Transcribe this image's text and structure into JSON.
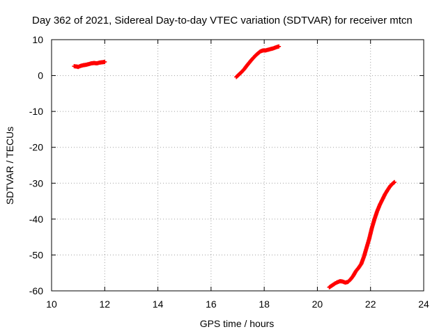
{
  "chart_data": {
    "type": "scatter",
    "title": "Day 362 of 2021, Sidereal Day-to-day VTEC variation (SDTVAR) for receiver mtcn",
    "xlabel": "GPS time / hours",
    "ylabel": "SDTVAR / TECUs",
    "xlim": [
      10,
      24
    ],
    "ylim": [
      -60,
      10
    ],
    "xticks": [
      10,
      12,
      14,
      16,
      18,
      20,
      22,
      24
    ],
    "yticks": [
      -60,
      -50,
      -40,
      -30,
      -20,
      -10,
      0,
      10
    ],
    "grid": true,
    "legend": "none",
    "marker": "plus",
    "series": [
      {
        "name": "segment-1",
        "color": "#ff0000",
        "x": [
          10.85,
          10.95,
          11.0,
          11.1,
          11.2,
          11.3,
          11.4,
          11.5,
          11.6,
          11.7,
          11.8,
          11.9,
          12.0
        ],
        "y": [
          2.6,
          2.5,
          2.4,
          2.7,
          2.9,
          3.0,
          3.2,
          3.4,
          3.5,
          3.4,
          3.6,
          3.7,
          3.8
        ]
      },
      {
        "name": "segment-2",
        "color": "#ff0000",
        "x": [
          16.95,
          17.05,
          17.15,
          17.25,
          17.35,
          17.45,
          17.55,
          17.65,
          17.75,
          17.85,
          17.95,
          18.05,
          18.15,
          18.25,
          18.35,
          18.45,
          18.55
        ],
        "y": [
          -0.4,
          0.3,
          1.0,
          1.8,
          2.8,
          3.7,
          4.6,
          5.4,
          6.1,
          6.7,
          7.0,
          7.0,
          7.2,
          7.4,
          7.6,
          7.9,
          8.1
        ]
      },
      {
        "name": "segment-3",
        "color": "#ff0000",
        "x": [
          20.45,
          20.55,
          20.65,
          20.75,
          20.85,
          20.95,
          21.05,
          21.15,
          21.25,
          21.35,
          21.45,
          21.55,
          21.65,
          21.75,
          21.85,
          21.95,
          22.05,
          22.15,
          22.25,
          22.35,
          22.45,
          22.55,
          22.65,
          22.75,
          22.85,
          22.9
        ],
        "y": [
          -59.0,
          -58.5,
          -58.0,
          -57.6,
          -57.3,
          -57.4,
          -57.7,
          -57.5,
          -56.8,
          -55.8,
          -54.5,
          -53.6,
          -52.5,
          -50.5,
          -48.0,
          -45.5,
          -42.5,
          -40.0,
          -37.8,
          -36.0,
          -34.5,
          -33.0,
          -31.8,
          -30.7,
          -30.0,
          -29.7
        ]
      }
    ]
  }
}
